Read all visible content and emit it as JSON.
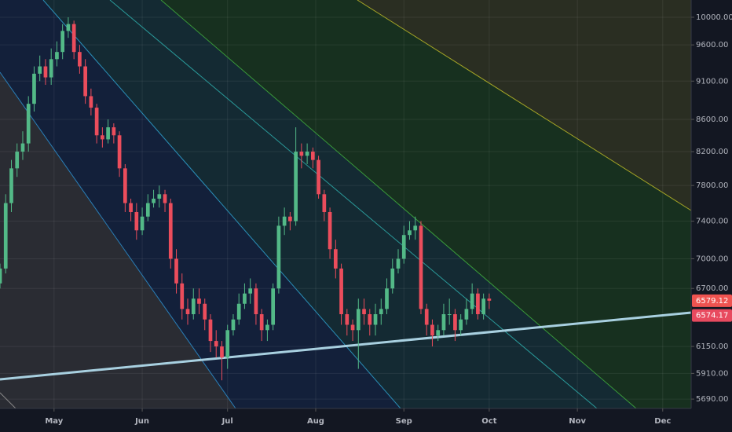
{
  "chart_data": {
    "type": "candlestick",
    "x": [
      0,
      2,
      4,
      6,
      8,
      10,
      12,
      14,
      16,
      18,
      20,
      22,
      24,
      26,
      28,
      30,
      32,
      34,
      36,
      38,
      40,
      42,
      44,
      46,
      48,
      50,
      52,
      54,
      56,
      58,
      60,
      62,
      64,
      66,
      68,
      70,
      72,
      74,
      76,
      78,
      80,
      82,
      84,
      86,
      88,
      90,
      92,
      94,
      96,
      98,
      100,
      102,
      104,
      106,
      108,
      110,
      112,
      114,
      116,
      118,
      120,
      122,
      124,
      126,
      128,
      130,
      132,
      134,
      136,
      138,
      140,
      142,
      144,
      146,
      148,
      150,
      152,
      154,
      156,
      158,
      160,
      162,
      164,
      166,
      168,
      170,
      172
    ],
    "open": [
      6750,
      6900,
      7600,
      8000,
      8200,
      8300,
      8800,
      9200,
      9300,
      9150,
      9400,
      9500,
      9800,
      9900,
      9500,
      9300,
      8900,
      8750,
      8400,
      8350,
      8500,
      8400,
      8000,
      7600,
      7500,
      7300,
      7450,
      7600,
      7650,
      7700,
      7600,
      7000,
      6750,
      6500,
      6450,
      6600,
      6550,
      6400,
      6200,
      6150,
      6050,
      6300,
      6400,
      6550,
      6650,
      6700,
      6450,
      6300,
      6350,
      6700,
      7350,
      7450,
      7400,
      8200,
      8150,
      8200,
      8100,
      7700,
      7500,
      7100,
      6900,
      6450,
      6350,
      6300,
      6500,
      6450,
      6350,
      6450,
      6500,
      6700,
      6900,
      7000,
      7250,
      7300,
      7350,
      6500,
      6350,
      6250,
      6300,
      6450,
      6450,
      6300,
      6400,
      6500,
      6650,
      6450,
      6600
    ],
    "high": [
      6950,
      7700,
      8100,
      8300,
      8450,
      8900,
      9300,
      9450,
      9400,
      9550,
      9650,
      9900,
      10000,
      9950,
      9600,
      9400,
      9000,
      8800,
      8500,
      8600,
      8550,
      8450,
      8050,
      7650,
      7600,
      7550,
      7700,
      7750,
      7800,
      7750,
      7650,
      7100,
      6850,
      6600,
      6700,
      6700,
      6600,
      6450,
      6300,
      6200,
      6350,
      6450,
      6650,
      6750,
      6800,
      6750,
      6500,
      6400,
      6750,
      7450,
      7550,
      7500,
      8500,
      8300,
      8300,
      8250,
      8150,
      7750,
      7550,
      7200,
      6950,
      6500,
      6400,
      6600,
      6600,
      6500,
      6550,
      6600,
      6800,
      7000,
      7100,
      7350,
      7400,
      7450,
      7400,
      6550,
      6400,
      6350,
      6550,
      6600,
      6500,
      6450,
      6600,
      6750,
      6700,
      6650,
      6650
    ],
    "low": [
      6700,
      6850,
      7500,
      7900,
      8100,
      8200,
      8700,
      9100,
      9050,
      9050,
      9300,
      9400,
      9700,
      9400,
      9200,
      8800,
      8650,
      8300,
      8250,
      8300,
      8300,
      7900,
      7500,
      7400,
      7200,
      7250,
      7400,
      7550,
      7550,
      7500,
      6900,
      6650,
      6400,
      6350,
      6400,
      6450,
      6300,
      6100,
      6050,
      5850,
      5950,
      6250,
      6350,
      6500,
      6550,
      6350,
      6200,
      6200,
      6300,
      6650,
      7250,
      7300,
      7350,
      8000,
      8050,
      8000,
      7650,
      7400,
      7000,
      6800,
      6350,
      6250,
      6200,
      5950,
      6350,
      6250,
      6250,
      6350,
      6450,
      6650,
      6850,
      6950,
      7200,
      7200,
      6450,
      6250,
      6150,
      6200,
      6250,
      6350,
      6200,
      6250,
      6350,
      6450,
      6400,
      6400,
      6500
    ],
    "close": [
      6900,
      7600,
      8000,
      8200,
      8300,
      8800,
      9200,
      9300,
      9150,
      9400,
      9500,
      9800,
      9900,
      9500,
      9300,
      8900,
      8750,
      8400,
      8350,
      8500,
      8400,
      8000,
      7600,
      7500,
      7300,
      7450,
      7600,
      7650,
      7700,
      7600,
      7000,
      6750,
      6500,
      6450,
      6600,
      6550,
      6400,
      6200,
      6150,
      6050,
      6300,
      6400,
      6550,
      6650,
      6700,
      6450,
      6300,
      6350,
      6700,
      7350,
      7450,
      7400,
      8200,
      8150,
      8200,
      8100,
      7700,
      7500,
      7100,
      6900,
      6450,
      6350,
      6300,
      6500,
      6450,
      6350,
      6450,
      6500,
      6700,
      6900,
      7000,
      7250,
      7300,
      7350,
      6500,
      6350,
      6250,
      6300,
      6450,
      6450,
      6300,
      6400,
      6500,
      6650,
      6450,
      6600,
      6580
    ],
    "up_color": "#53b987",
    "down_color": "#eb4d5c",
    "xlim": [
      0,
      243
    ],
    "xticks": [
      {
        "value": 19,
        "label": "May"
      },
      {
        "value": 50,
        "label": "Jun"
      },
      {
        "value": 80,
        "label": "Jul"
      },
      {
        "value": 111,
        "label": "Aug"
      },
      {
        "value": 142,
        "label": "Sep"
      },
      {
        "value": 172,
        "label": "Oct"
      },
      {
        "value": 203,
        "label": "Nov"
      },
      {
        "value": 233,
        "label": "Dec"
      }
    ],
    "ylim": [
      5612,
      10258
    ],
    "log_scale": true,
    "grid": true,
    "yticks": [
      {
        "value": 10000,
        "label": "10000.00"
      },
      {
        "value": 9600,
        "label": "9600.00"
      },
      {
        "value": 9100,
        "label": "9100.00"
      },
      {
        "value": 8600,
        "label": "8600.00"
      },
      {
        "value": 8200,
        "label": "8200.00"
      },
      {
        "value": 7800,
        "label": "7800.00"
      },
      {
        "value": 7400,
        "label": "7400.00"
      },
      {
        "value": 7000,
        "label": "7000.00"
      },
      {
        "value": 6700,
        "label": "6700.00"
      },
      {
        "value": 6150,
        "label": "6150.00"
      },
      {
        "value": 5910,
        "label": "5910.00"
      },
      {
        "value": 5690,
        "label": "5690.00"
      }
    ],
    "price_labels": [
      6579.12,
      6574.17
    ]
  }
}
